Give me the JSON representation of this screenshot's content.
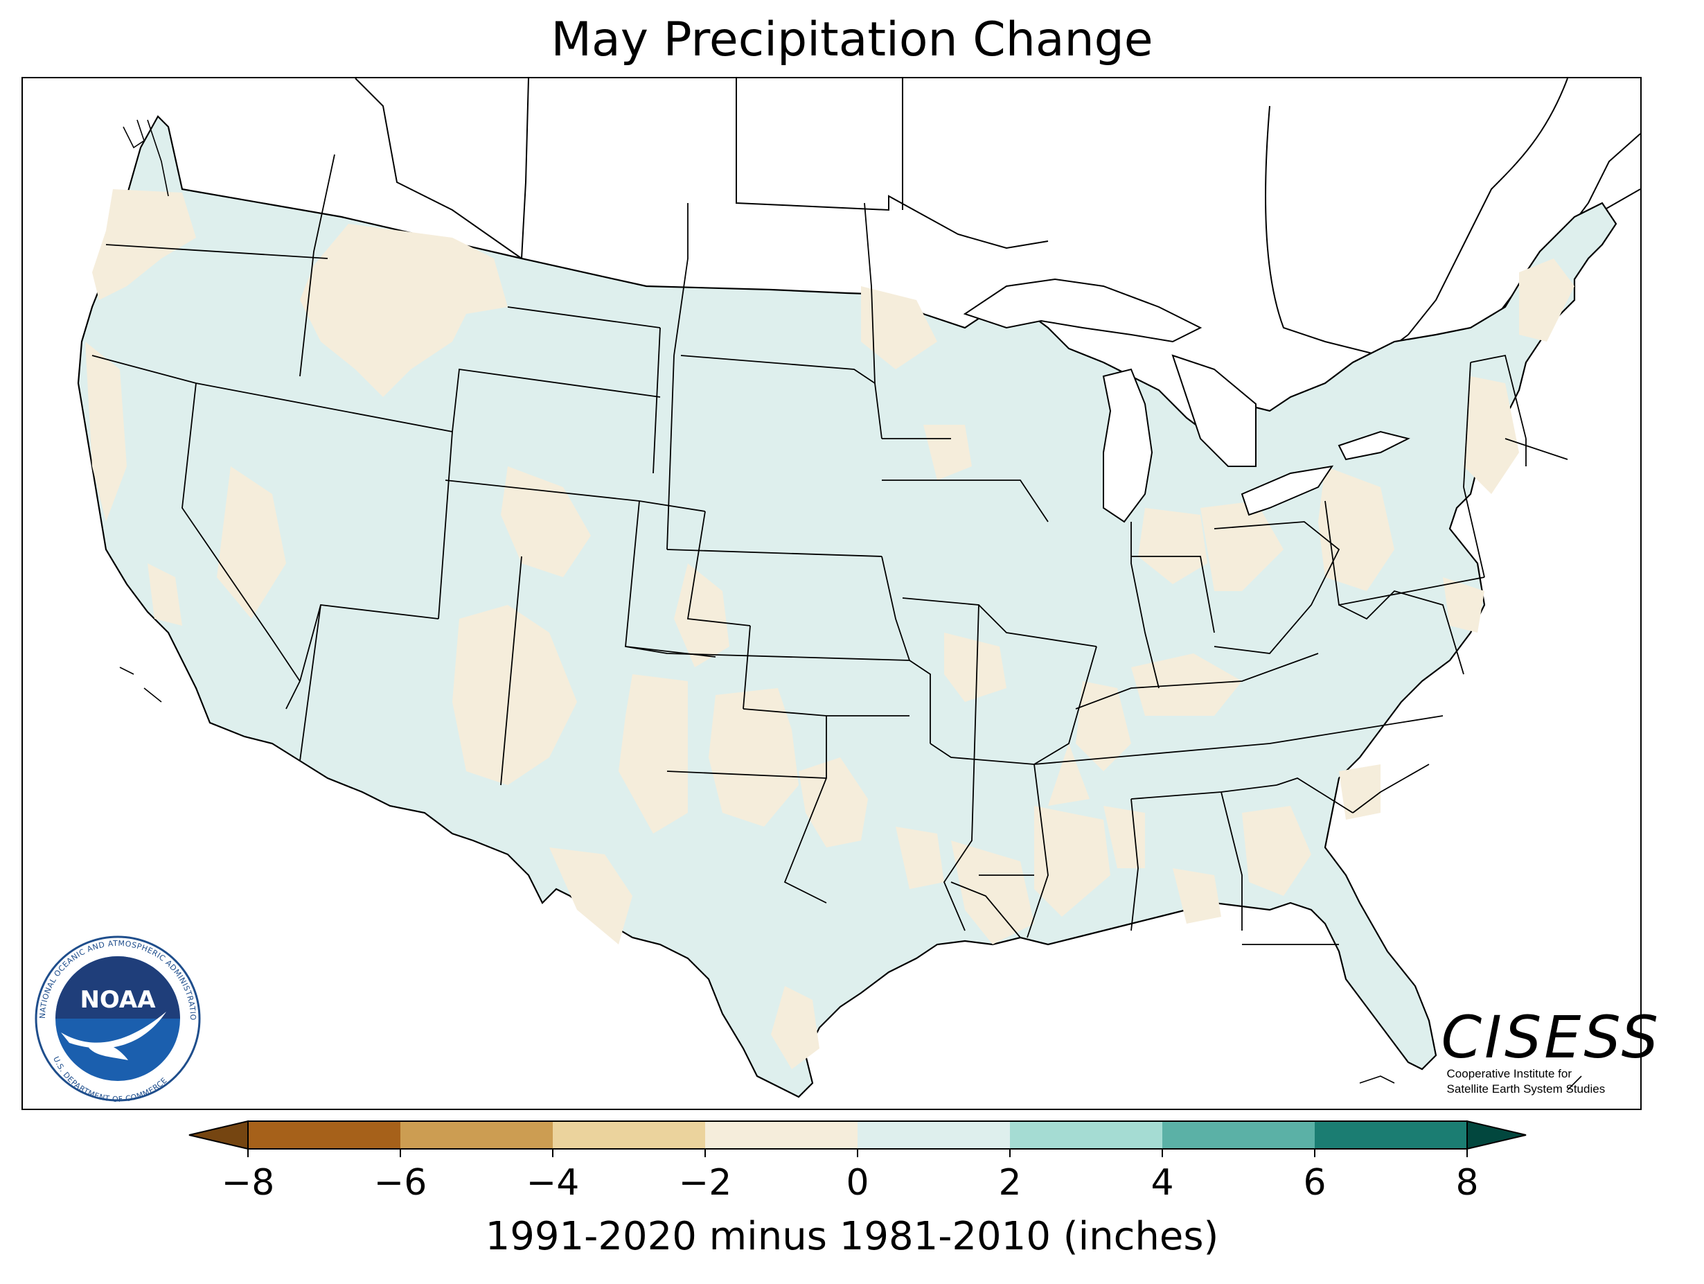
{
  "title": "May Precipitation Change",
  "colorbar": {
    "label": "1991-2020 minus 1981-2010 (inches)",
    "ticks": [
      "−8",
      "−6",
      "−4",
      "−2",
      "0",
      "2",
      "4",
      "6",
      "8"
    ],
    "bins": [
      {
        "range": [
          -8,
          -6
        ],
        "color": "#a6611a"
      },
      {
        "range": [
          -6,
          -4
        ],
        "color": "#cc9d52"
      },
      {
        "range": [
          -4,
          -2
        ],
        "color": "#ebd39d"
      },
      {
        "range": [
          -2,
          0
        ],
        "color": "#f5eddb"
      },
      {
        "range": [
          0,
          2
        ],
        "color": "#deefed"
      },
      {
        "range": [
          2,
          4
        ],
        "color": "#a5dcd3"
      },
      {
        "range": [
          4,
          6
        ],
        "color": "#5bb1a6"
      },
      {
        "range": [
          6,
          8
        ],
        "color": "#1b7d72"
      }
    ],
    "extend_low_color": "#754511",
    "extend_high_color": "#02473e"
  },
  "map": {
    "region": "Contiguous United States",
    "dominant_categories": [
      "0 to 2",
      "-2 to 0"
    ],
    "land_base_color": "#deefed",
    "drier_patch_color": "#f5eddb",
    "boundary_color": "#000000"
  },
  "logos": {
    "noaa": {
      "name": "NOAA",
      "ring_text": "NATIONAL OCEANIC AND ATMOSPHERIC ADMINISTRATION",
      "bottom_text": "U.S. DEPARTMENT OF COMMERCE"
    },
    "cisess": {
      "name": "CISESS",
      "line1": "Cooperative Institute for",
      "line2": "Satellite Earth System Studies"
    }
  }
}
